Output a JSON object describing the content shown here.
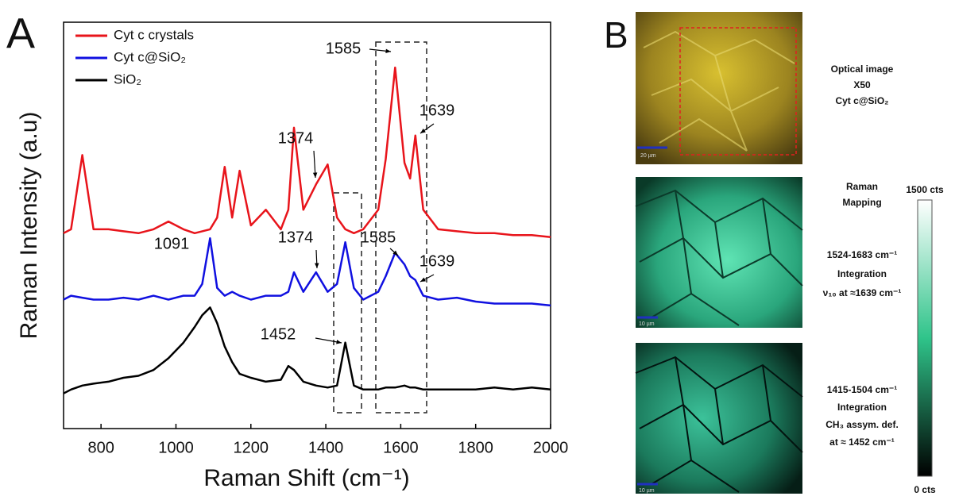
{
  "chart_data": {
    "type": "line",
    "panel_label": "A",
    "x_label": "Raman Shift (cm⁻¹)",
    "y_label": "Raman Intensity (a.u)",
    "x": [
      700,
      720,
      750,
      780,
      820,
      860,
      900,
      940,
      980,
      1020,
      1050,
      1070,
      1091,
      1110,
      1130,
      1150,
      1170,
      1200,
      1240,
      1280,
      1300,
      1315,
      1340,
      1374,
      1405,
      1430,
      1452,
      1475,
      1500,
      1540,
      1560,
      1585,
      1610,
      1625,
      1639,
      1660,
      1700,
      1750,
      1800,
      1850,
      1900,
      1950,
      2000
    ],
    "series": [
      {
        "name": "Cyt c crystals",
        "color": "#e8141b",
        "values": [
          46,
          47,
          66,
          47,
          47,
          46.5,
          46,
          47,
          49,
          47,
          46,
          46.5,
          47,
          50,
          63,
          50,
          62,
          48,
          52,
          47,
          52,
          73,
          52,
          58.5,
          63.6,
          50,
          47,
          46,
          47,
          52,
          65,
          88.4,
          64,
          60,
          71,
          52,
          47,
          46.5,
          46,
          46,
          45.5,
          45.5,
          45
        ]
      },
      {
        "name": "Cyt c@SiO₂",
        "color": "#1010e0",
        "values": [
          29,
          30,
          29.5,
          29,
          29,
          29.5,
          29,
          30,
          29,
          30,
          30,
          33,
          44.7,
          32,
          30,
          31,
          30,
          29,
          30,
          30,
          31,
          36,
          31,
          36,
          31,
          33,
          43.7,
          32,
          29,
          31,
          35,
          41,
          38,
          35,
          34,
          30,
          29,
          29.5,
          28.5,
          28,
          28,
          28,
          27.5
        ]
      },
      {
        "name": "SiO₂",
        "color": "#000000",
        "values": [
          5,
          6,
          7,
          7.5,
          8,
          9,
          9.5,
          11,
          14,
          18,
          22,
          25,
          27,
          23,
          17,
          13,
          10,
          9,
          8,
          8.5,
          12,
          11,
          8,
          7,
          6.5,
          7,
          18,
          7,
          6,
          6,
          6.5,
          6.5,
          7,
          6.5,
          6.5,
          6,
          6,
          6,
          6,
          6.5,
          6,
          6.5,
          6
        ]
      }
    ],
    "annotations": [
      "1585",
      "1639",
      "1374",
      "1091",
      "1374",
      "1585",
      "1639",
      "1452"
    ],
    "xlim": [
      700,
      2000
    ],
    "xticks": [
      800,
      1000,
      1200,
      1400,
      1600,
      1800,
      2000
    ],
    "ylim": [
      -4,
      100
    ]
  },
  "panel_b": {
    "panel_label": "B",
    "optical": {
      "lines": [
        "Optical image",
        "X50",
        "Cyt c@SiO₂"
      ],
      "scale_bar": "20 µm"
    },
    "mapping_title": [
      "Raman",
      "Mapping"
    ],
    "map1": {
      "lines": [
        "1524-1683 cm⁻¹",
        "Integration",
        "ν₁₀ at ≈1639 cm⁻¹"
      ],
      "scale_bar": "10 µm"
    },
    "map2": {
      "lines": [
        "1415-1504 cm⁻¹",
        "Integration",
        "CH₃ assym. def.",
        "at ≈ 1452 cm⁻¹"
      ],
      "scale_bar": "10 µm"
    },
    "colorbar": {
      "max_label": "1500 cts",
      "min_label": "0 cts"
    }
  }
}
